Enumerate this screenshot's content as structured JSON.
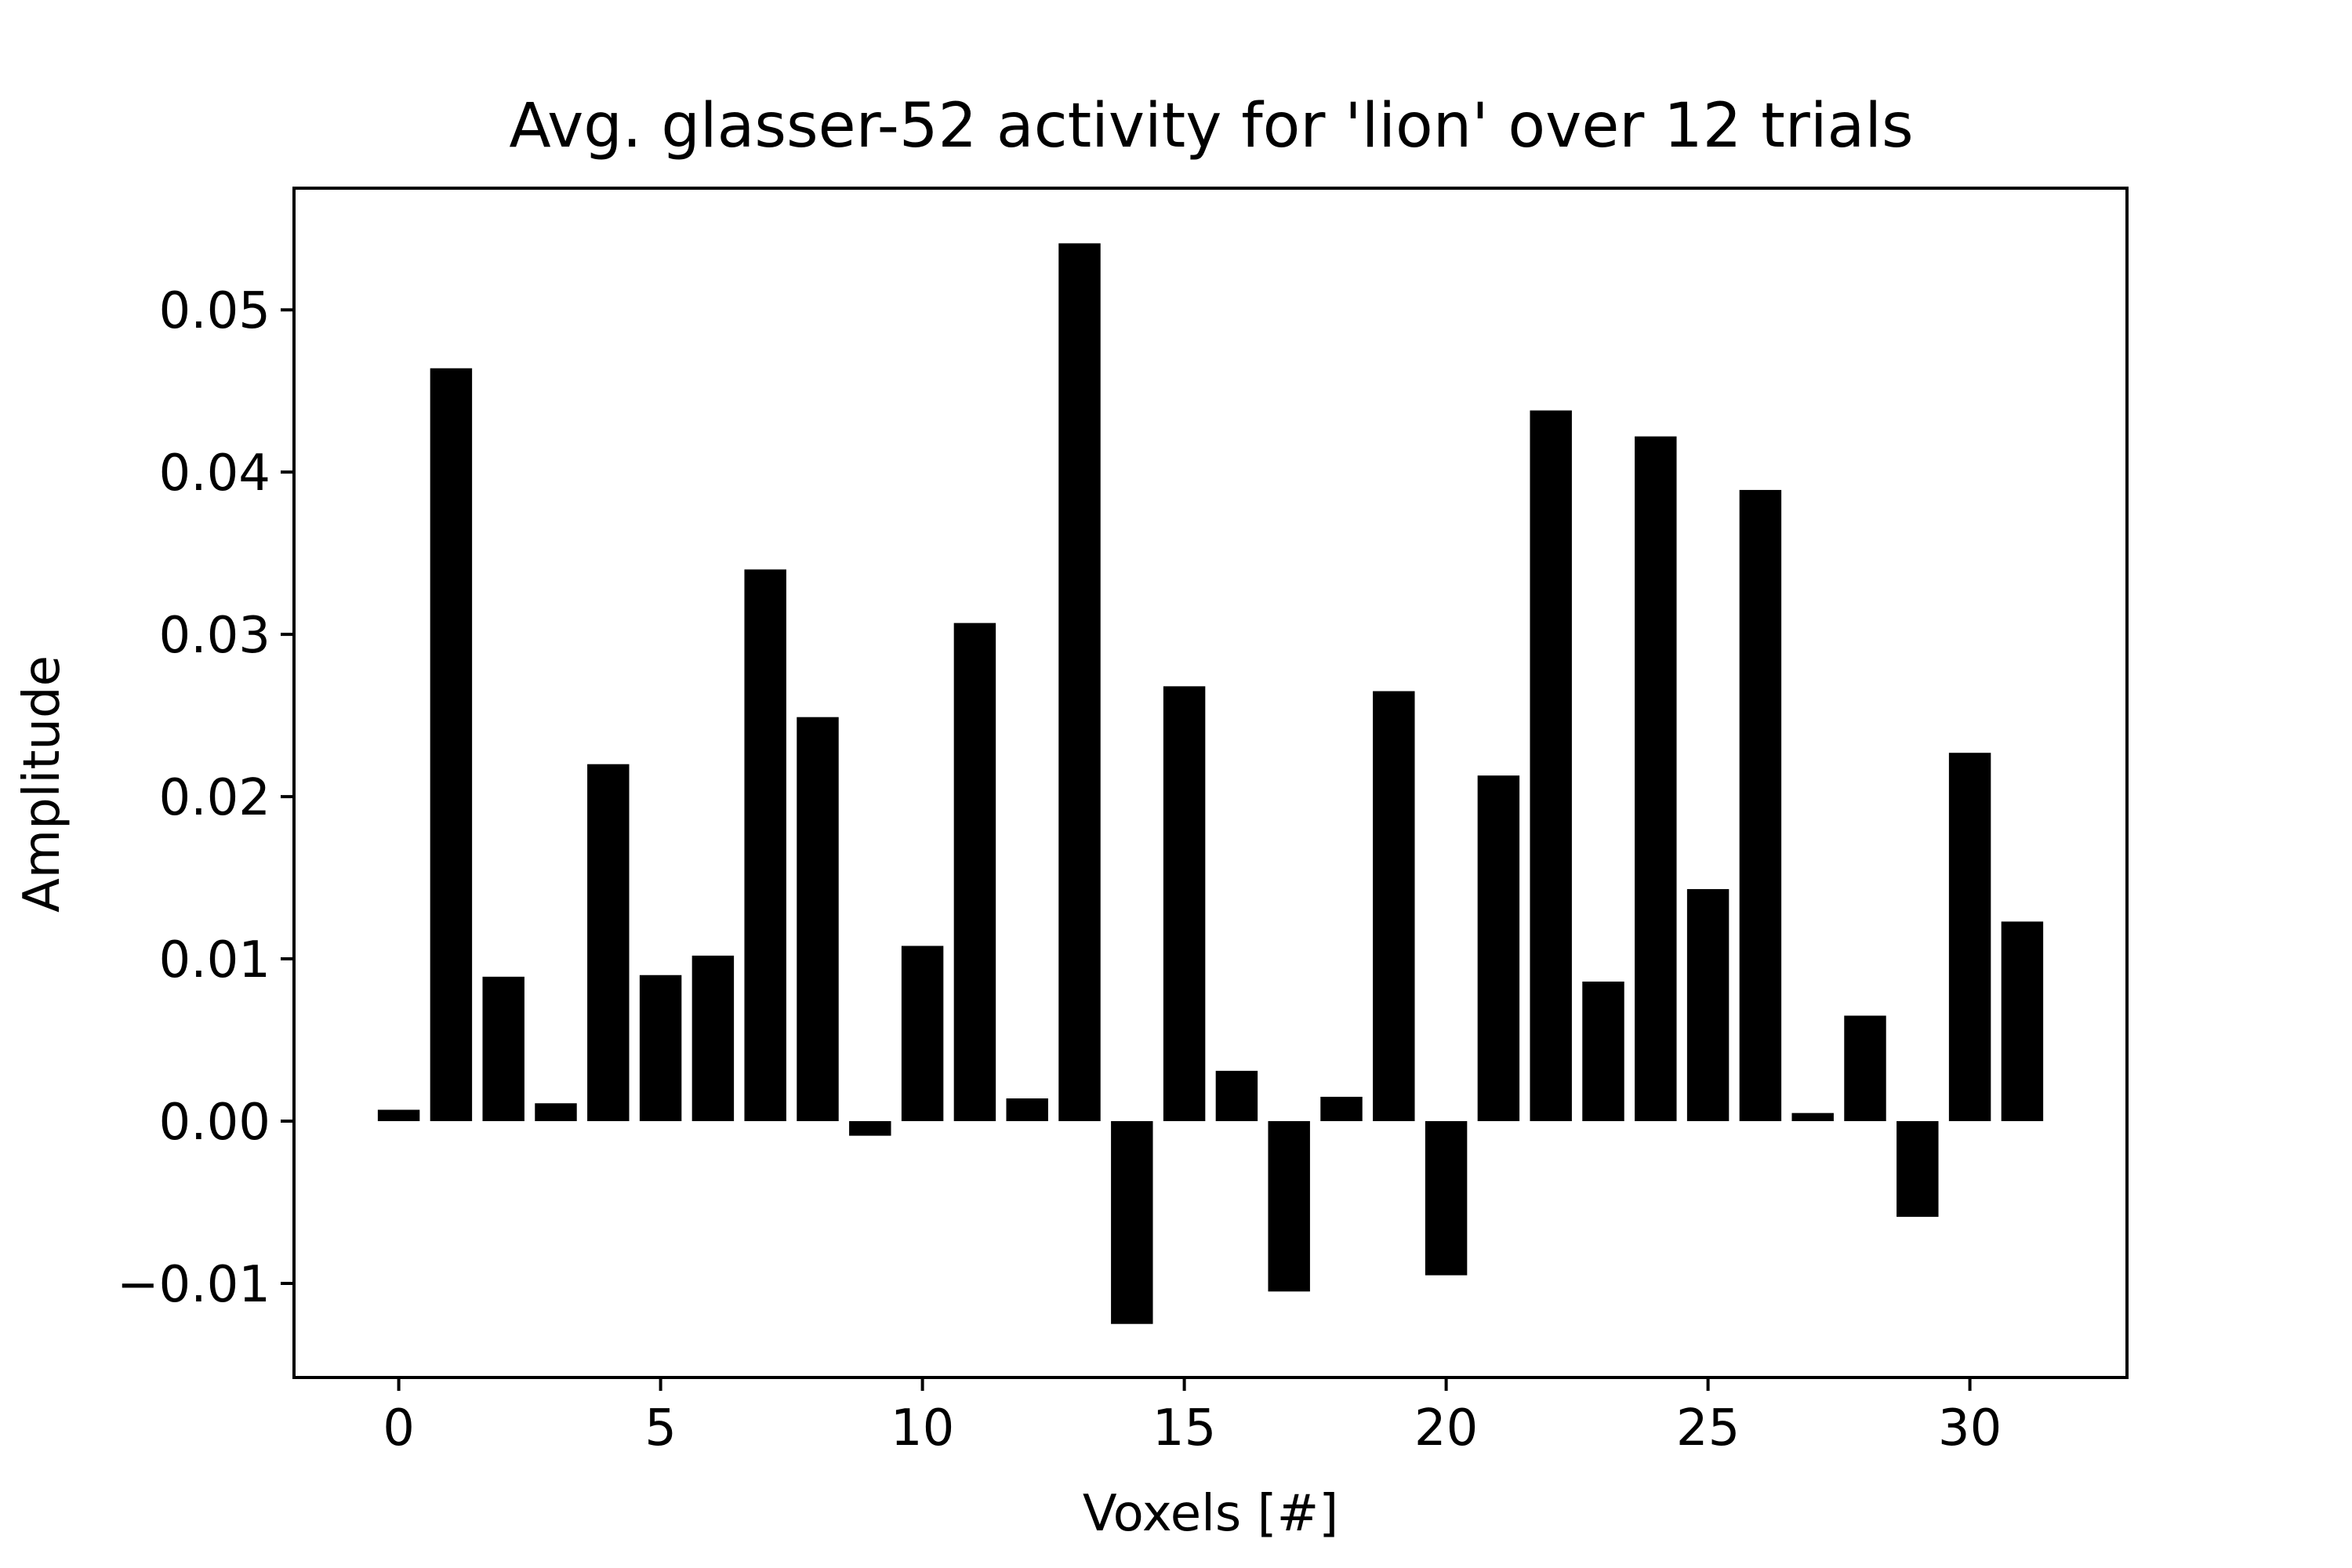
{
  "chart_data": {
    "type": "bar",
    "title": "Avg. glasser-52 activity for 'lion' over 12 trials",
    "xlabel": "Voxels [#]",
    "ylabel": "Amplitude",
    "x": [
      0,
      1,
      2,
      3,
      4,
      5,
      6,
      7,
      8,
      9,
      10,
      11,
      12,
      13,
      14,
      15,
      16,
      17,
      18,
      19,
      20,
      21,
      22,
      23,
      24,
      25,
      26,
      27,
      28,
      29,
      30,
      31
    ],
    "values": [
      0.0007,
      0.0464,
      0.0089,
      0.0011,
      0.022,
      0.009,
      0.0102,
      0.034,
      0.0249,
      -0.0009,
      0.0108,
      0.0307,
      0.0014,
      0.0541,
      -0.0125,
      0.0268,
      0.0031,
      -0.0105,
      0.0015,
      0.0265,
      -0.0095,
      0.0213,
      0.0438,
      0.0086,
      0.0422,
      0.0143,
      0.0389,
      0.0005,
      0.0065,
      -0.0059,
      0.0227,
      0.0123
    ],
    "xlim": [
      -2,
      33
    ],
    "ylim": [
      -0.0158,
      0.0575
    ],
    "xticks": [
      0,
      5,
      10,
      15,
      20,
      25,
      30
    ],
    "xtick_labels": [
      "0",
      "5",
      "10",
      "15",
      "20",
      "25",
      "30"
    ],
    "yticks": [
      -0.01,
      0.0,
      0.01,
      0.02,
      0.03,
      0.04,
      0.05
    ],
    "ytick_labels": [
      "−0.01",
      "0.00",
      "0.01",
      "0.02",
      "0.03",
      "0.04",
      "0.05"
    ],
    "bar_color": "#000000",
    "grid": false,
    "legend": "none"
  }
}
